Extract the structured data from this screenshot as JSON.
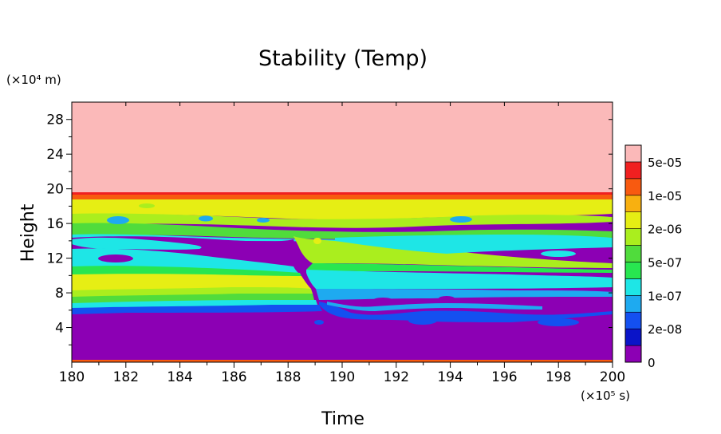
{
  "chart_data": {
    "type": "heatmap",
    "title": "Stability (Temp)",
    "xlabel": "Time",
    "ylabel": "Height",
    "x_unit": "(×10⁵ s)",
    "y_unit": "(×10⁴ m)",
    "xlim": [
      180,
      200
    ],
    "ylim": [
      0,
      30
    ],
    "x_ticks": [
      "180",
      "182",
      "184",
      "186",
      "188",
      "190",
      "192",
      "194",
      "196",
      "198",
      "200"
    ],
    "y_ticks": [
      "4",
      "8",
      "12",
      "16",
      "20",
      "24",
      "28"
    ],
    "legend_labels": [
      "0",
      "2e-08",
      "1e-07",
      "5e-07",
      "2e-06",
      "1e-05",
      "5e-05"
    ],
    "colors": {
      "pink": "#fbb9b9",
      "red": "#f02020",
      "orange_red": "#f85a10",
      "orange": "#f8b010",
      "yellow": "#e6ee14",
      "yellow_green": "#aaee1e",
      "green": "#50dc3c",
      "bright_green": "#28e650",
      "cyan": "#1ee6e6",
      "sky": "#1eaaf0",
      "blue": "#1450f0",
      "deep_blue": "#0a14c8",
      "purple": "#8c00b4"
    }
  }
}
